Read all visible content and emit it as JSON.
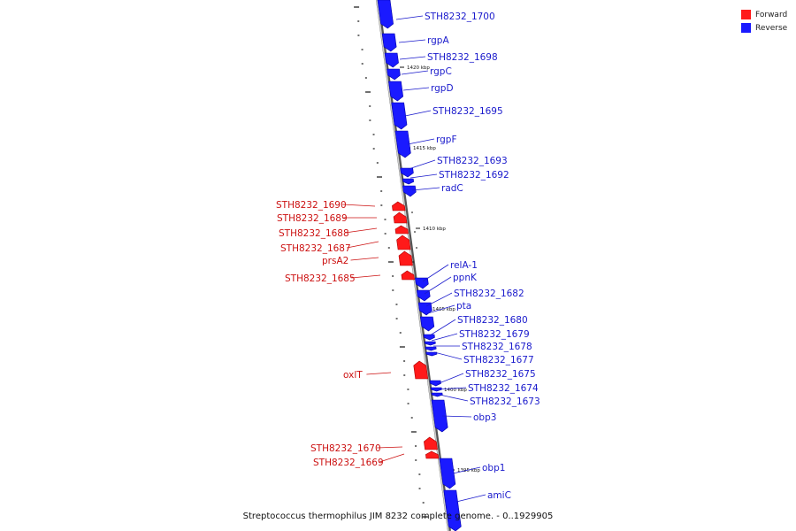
{
  "colors": {
    "forward": "#ff1a1a",
    "reverse": "#1a1aff",
    "forward_label": "#cc1111",
    "reverse_label": "#1a1acc",
    "axis": "#888888"
  },
  "legend": {
    "forward_label": "Forward",
    "reverse_label": "Reverse"
  },
  "caption": "Streptococcus thermophilus JIM 8232 complete genome. - 0..1929905",
  "ticks": [
    "1420 kbp",
    "1415 kbp",
    "1410 kbp",
    "1405 kbp",
    "1400 kbp",
    "1395 kbp"
  ],
  "genes": [
    {
      "name": "STH8232_1700",
      "strand": "reverse"
    },
    {
      "name": "rgpA",
      "strand": "reverse"
    },
    {
      "name": "STH8232_1698",
      "strand": "reverse"
    },
    {
      "name": "rgpC",
      "strand": "reverse"
    },
    {
      "name": "rgpD",
      "strand": "reverse"
    },
    {
      "name": "STH8232_1695",
      "strand": "reverse"
    },
    {
      "name": "rgpF",
      "strand": "reverse"
    },
    {
      "name": "STH8232_1693",
      "strand": "reverse"
    },
    {
      "name": "STH8232_1692",
      "strand": "reverse"
    },
    {
      "name": "radC",
      "strand": "reverse"
    },
    {
      "name": "STH8232_1690",
      "strand": "forward"
    },
    {
      "name": "STH8232_1689",
      "strand": "forward"
    },
    {
      "name": "STH8232_1688",
      "strand": "forward"
    },
    {
      "name": "STH8232_1687",
      "strand": "forward"
    },
    {
      "name": "prsA2",
      "strand": "forward"
    },
    {
      "name": "STH8232_1685",
      "strand": "forward"
    },
    {
      "name": "relA-1",
      "strand": "reverse"
    },
    {
      "name": "ppnK",
      "strand": "reverse"
    },
    {
      "name": "STH8232_1682",
      "strand": "reverse"
    },
    {
      "name": "pta",
      "strand": "reverse"
    },
    {
      "name": "STH8232_1680",
      "strand": "reverse"
    },
    {
      "name": "STH8232_1679",
      "strand": "reverse"
    },
    {
      "name": "STH8232_1678",
      "strand": "reverse"
    },
    {
      "name": "STH8232_1677",
      "strand": "reverse"
    },
    {
      "name": "oxlT",
      "strand": "forward"
    },
    {
      "name": "STH8232_1675",
      "strand": "reverse"
    },
    {
      "name": "STH8232_1674",
      "strand": "reverse"
    },
    {
      "name": "STH8232_1673",
      "strand": "reverse"
    },
    {
      "name": "obp3",
      "strand": "reverse"
    },
    {
      "name": "STH8232_1670",
      "strand": "forward"
    },
    {
      "name": "STH8232_1669",
      "strand": "forward"
    },
    {
      "name": "obp1",
      "strand": "reverse"
    },
    {
      "name": "amiC",
      "strand": "reverse"
    }
  ]
}
